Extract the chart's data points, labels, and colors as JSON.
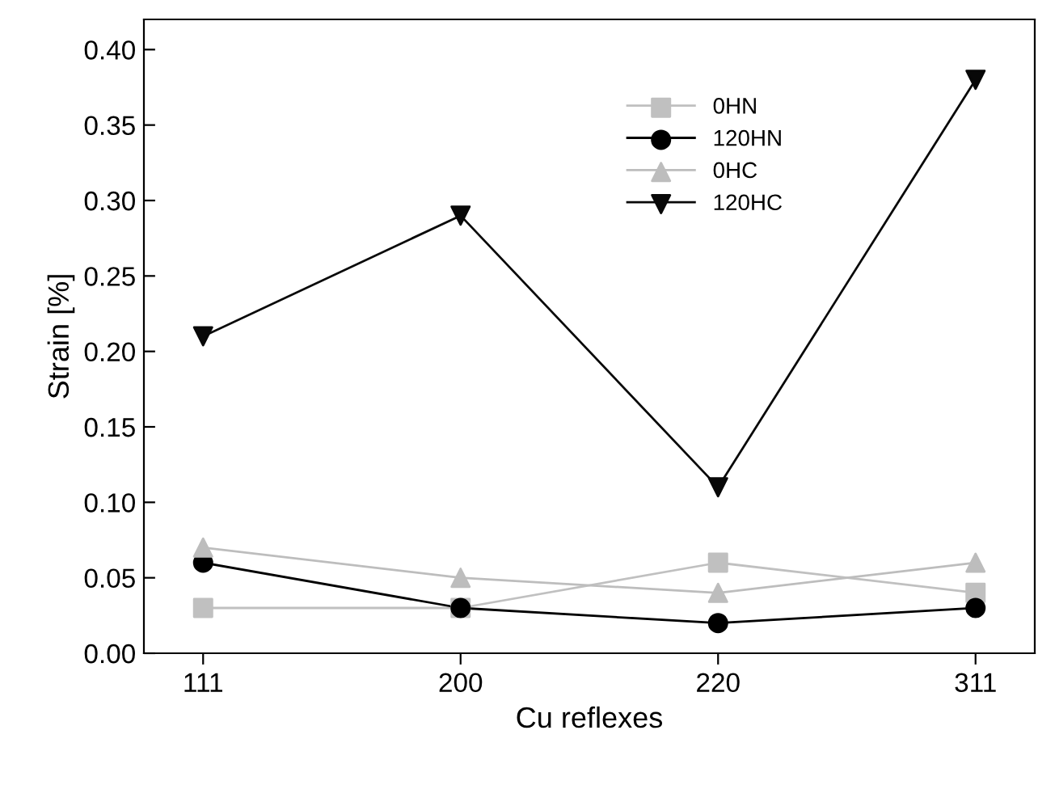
{
  "chart_data": {
    "type": "line",
    "xlabel": "Cu reflexes",
    "ylabel": "Strain [%]",
    "categories": [
      "111",
      "200",
      "220",
      "311"
    ],
    "series": [
      {
        "name": "0HN",
        "color": "#c0c0c0",
        "marker": "square",
        "values": [
          0.03,
          0.03,
          0.06,
          0.04
        ]
      },
      {
        "name": "120HN",
        "color": "#000000",
        "marker": "circle",
        "values": [
          0.06,
          0.03,
          0.02,
          0.03
        ]
      },
      {
        "name": "0HC",
        "color": "#bdbdbd",
        "marker": "triangle",
        "values": [
          0.07,
          0.05,
          0.04,
          0.06
        ]
      },
      {
        "name": "120HC",
        "color": "#080808",
        "marker": "triangle_down",
        "values": [
          0.21,
          0.29,
          0.11,
          0.38
        ]
      }
    ],
    "ylim": [
      0,
      0.42
    ],
    "yticks": [
      {
        "value": 0,
        "label": "0.00"
      },
      {
        "value": 0.05,
        "label": "0.05"
      },
      {
        "value": 0.1,
        "label": "0.10"
      },
      {
        "value": 0.15,
        "label": "0.15"
      },
      {
        "value": 0.2,
        "label": "0.20"
      },
      {
        "value": 0.25,
        "label": "0.25"
      },
      {
        "value": 0.3,
        "label": "0.30"
      },
      {
        "value": 0.35,
        "label": "0.35"
      },
      {
        "value": 0.4,
        "label": "0.40"
      }
    ],
    "grid": false,
    "legend": "top right",
    "line_style": "solid"
  }
}
